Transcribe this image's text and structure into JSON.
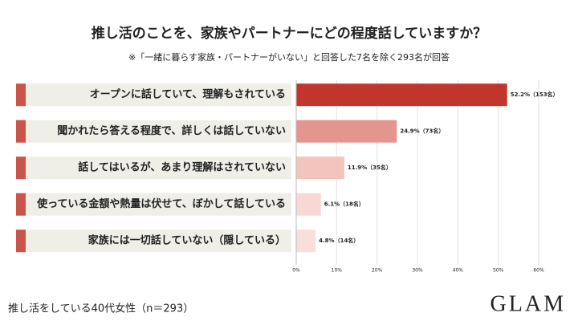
{
  "chart_data": {
    "type": "bar",
    "orientation": "horizontal",
    "title": "推し活のことを、家族やパートナーにどの程度話していますか？",
    "subtitle": "※「一緒に暮らす家族・パートナーがいない」と回答した7名を除く293名が回答",
    "categories": [
      "オープンに話していて、理解もされている",
      "聞かれたら答える程度で、詳しくは話していない",
      "話してはいるが、あまり理解はされていない",
      "使っている金額や熱量は伏せて、ぼかして話している",
      "家族には一切話していない（隠している）"
    ],
    "values": [
      52.2,
      24.9,
      11.9,
      6.1,
      4.8
    ],
    "value_labels": [
      "52.2%（153名）",
      "24.9%（73名）",
      "11.9%（35名）",
      "6.1%（18名）",
      "4.8%（14名）"
    ],
    "colors": [
      "#c1352c",
      "#e3968f",
      "#f3c4be",
      "#f8d8d4",
      "#f9dedb"
    ],
    "xlim": [
      0,
      60
    ],
    "xticks": [
      {
        "value": 0,
        "label": "0%"
      },
      {
        "value": 10,
        "label": "10%"
      },
      {
        "value": 20,
        "label": "20%"
      },
      {
        "value": 30,
        "label": "30%"
      },
      {
        "value": 40,
        "label": "40%"
      },
      {
        "value": 50,
        "label": "50%"
      },
      {
        "value": 60,
        "label": "60%"
      }
    ],
    "grid": true,
    "footnote": "推し活をしている40代女性（n＝293）",
    "brand": "GLAM"
  }
}
